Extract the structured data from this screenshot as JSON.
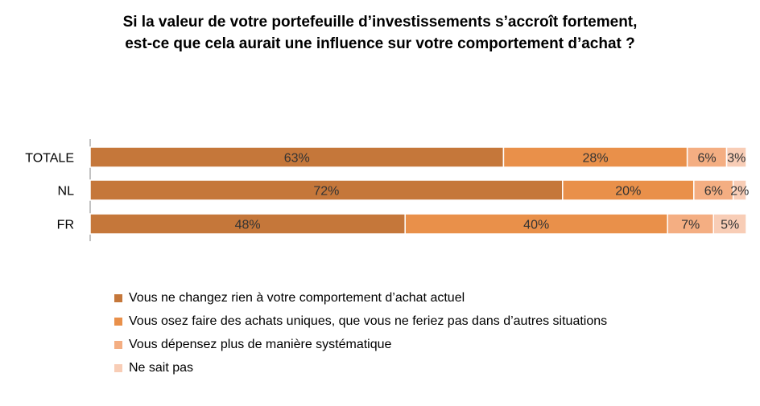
{
  "chart_data": {
    "type": "bar",
    "orientation": "horizontal",
    "stacked": true,
    "title": "Si la valeur de votre portefeuille d’investissements s’accroît fortement,",
    "subtitle": "est-ce que cela aurait une influence sur votre comportement d’achat  ?",
    "categories": [
      "TOTALE",
      "NL",
      "FR"
    ],
    "series": [
      {
        "name": "Vous ne changez rien à votre comportement d’achat actuel",
        "values": [
          63,
          72,
          48
        ],
        "labels": [
          "63%",
          "72%",
          "48%"
        ],
        "color": "#C5773A"
      },
      {
        "name": "Vous osez faire des achats uniques, que vous ne feriez pas dans d’autres situations",
        "values": [
          28,
          20,
          40
        ],
        "labels": [
          "28%",
          "20%",
          "40%"
        ],
        "color": "#E9904A"
      },
      {
        "name": "Vous dépensez plus de manière systématique",
        "values": [
          6,
          6,
          7
        ],
        "labels": [
          "6%",
          "6%",
          "7%"
        ],
        "color": "#F4AE82"
      },
      {
        "name": "Ne sait pas",
        "values": [
          3,
          2,
          5
        ],
        "labels": [
          "3%",
          "2%",
          "5%"
        ],
        "color": "#F8CDB6"
      }
    ],
    "xlim": [
      0,
      100
    ],
    "grid": false,
    "legend_position": "bottom-left"
  }
}
